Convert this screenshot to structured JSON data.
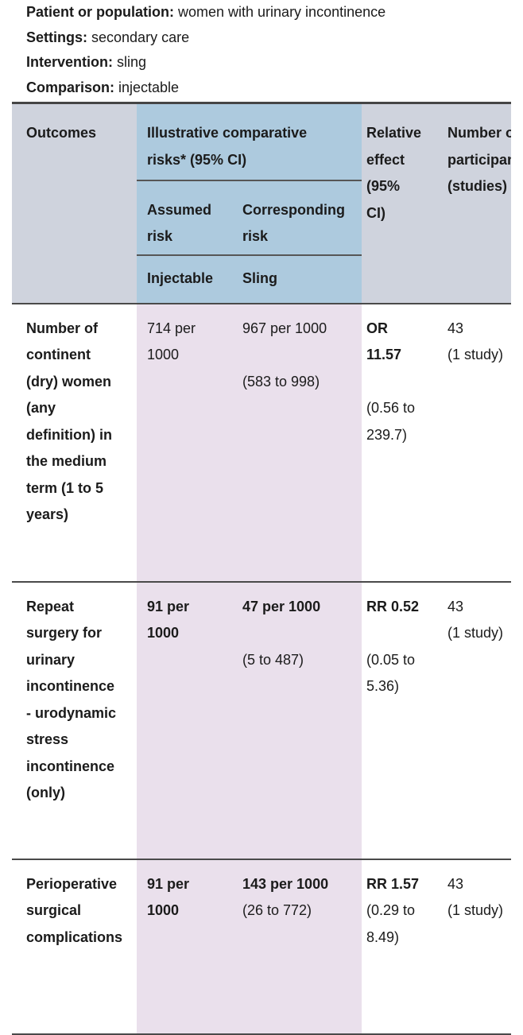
{
  "intro": [
    {
      "label": "Patient or population:",
      "value": " women with urinary incontinence"
    },
    {
      "label": "Settings:",
      "value": " secondary care"
    },
    {
      "label": "Intervention:",
      "value": " sling"
    },
    {
      "label": "Comparison:",
      "value": " injectable"
    }
  ],
  "table": {
    "header": {
      "outcomes": "Outcomes",
      "group": "Illustrative comparative\nrisks* (95% CI)",
      "assumed": "Assumed\nrisk",
      "corresponding": "Corresponding\nrisk",
      "injectable": "Injectable",
      "sling": "Sling",
      "relative": "Relative\neffect\n(95%\nCI)",
      "participants": "Number of\nparticipants\n(studies)"
    },
    "rows": [
      {
        "outcome": [
          {
            "text": "Number of\ncontinent\n(dry) women\n(any\ndefinition) in\nthe medium\nterm (1 to 5\nyears)",
            "bold": true
          }
        ],
        "assumed_risk": [
          {
            "text": "714 per\n1000",
            "bold": false
          }
        ],
        "corresponding_risk": [
          {
            "text": "967 per 1000",
            "bold": false
          },
          {
            "text": "\n(583 to 998)",
            "bold": false
          }
        ],
        "relative_effect": [
          {
            "text": "OR\n11.57",
            "bold": true
          },
          {
            "text": "\n(0.56 to\n239.7)",
            "bold": false
          }
        ],
        "participants": [
          {
            "text": "43\n(1 study)",
            "bold": false
          }
        ]
      },
      {
        "outcome": [
          {
            "text": "Repeat\nsurgery for\nurinary\nincontinence\n- urodynamic\nstress\nincontinence\n(only)",
            "bold": true
          }
        ],
        "assumed_risk": [
          {
            "text": "91 per\n1000",
            "bold": true
          }
        ],
        "corresponding_risk": [
          {
            "text": "47 per 1000",
            "bold": true
          },
          {
            "text": "\n(5 to 487)",
            "bold": false
          }
        ],
        "relative_effect": [
          {
            "text": "RR 0.52",
            "bold": true
          },
          {
            "text": "\n(0.05 to\n5.36)",
            "bold": false
          }
        ],
        "participants": [
          {
            "text": "43\n(1 study)",
            "bold": false
          }
        ]
      },
      {
        "outcome": [
          {
            "text": "Perioperative\nsurgical\ncomplications",
            "bold": true
          }
        ],
        "assumed_risk": [
          {
            "text": "91 per\n1000",
            "bold": true
          }
        ],
        "corresponding_risk": [
          {
            "text": "143 per 1000",
            "bold": true
          },
          {
            "text": "(26 to 772)",
            "bold": false
          }
        ],
        "relative_effect": [
          {
            "text": "RR 1.57",
            "bold": true
          },
          {
            "text": "(0.29 to\n8.49)",
            "bold": false
          }
        ],
        "participants": [
          {
            "text": "43\n(1 study)",
            "bold": false
          }
        ]
      }
    ]
  },
  "colors": {
    "header_bg": "#cfd3dd",
    "subheader_bg": "#adcade",
    "risk_columns_bg": "#eae0ec",
    "rule_dark": "#454545",
    "rule": "#4a4a4a",
    "text": "#1b1b1b"
  }
}
